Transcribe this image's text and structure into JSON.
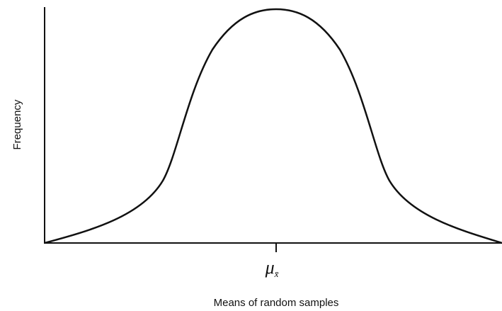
{
  "y_axis_label": "Frequency",
  "x_marker": {
    "symbol": "μ",
    "subscript": "x̄"
  },
  "x_axis_label": "Means of random samples"
}
